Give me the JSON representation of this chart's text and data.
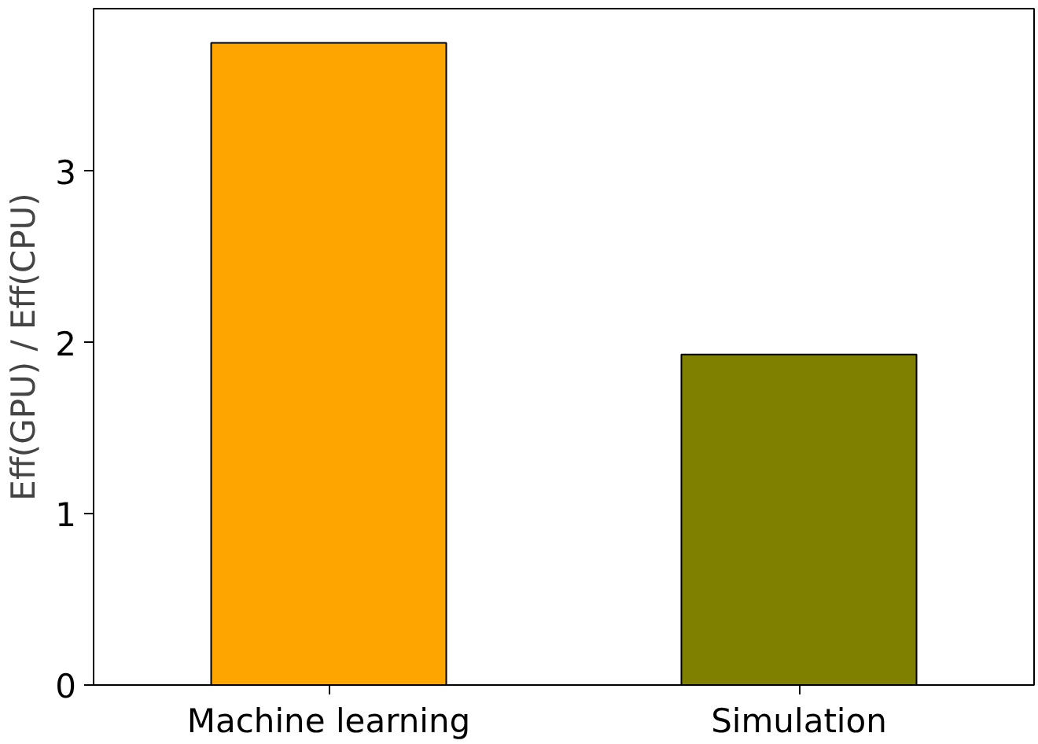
{
  "chart_data": {
    "type": "bar",
    "ylabel": "Eff(GPU) / Eff(CPU)",
    "categories": [
      "Machine learning",
      "Simulation"
    ],
    "values": [
      3.75,
      1.93
    ],
    "colors": [
      "#ffa500",
      "#808000"
    ],
    "ylim": [
      0,
      3.95
    ],
    "yticks": [
      0,
      1,
      2,
      3
    ],
    "grid": false
  }
}
